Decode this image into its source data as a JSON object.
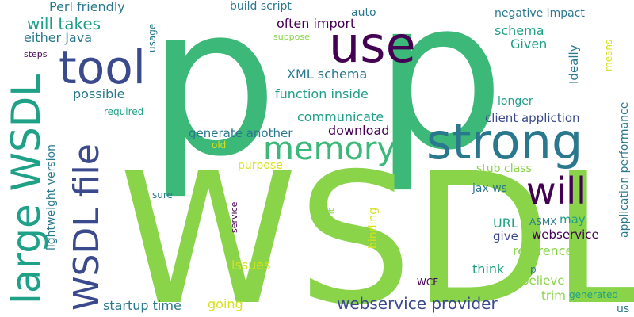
{
  "words": [
    {
      "text": "p",
      "color": "#3cb878"
    },
    {
      "text": "p",
      "color": "#3cb878"
    },
    {
      "text": "WSDL",
      "color": "#8ad44a"
    },
    {
      "text": "strong",
      "color": "#2a788e"
    },
    {
      "text": "use",
      "color": "#440154"
    },
    {
      "text": "tool",
      "color": "#3b4a8c"
    },
    {
      "text": "memory",
      "color": "#3cb878"
    },
    {
      "text": "will",
      "color": "#440154"
    },
    {
      "text": "large WSDL",
      "color": "#1fa187"
    },
    {
      "text": "WSDL file",
      "color": "#3b4a8c"
    },
    {
      "text": "will takes",
      "color": "#1f9e89"
    },
    {
      "text": "either Java",
      "color": "#2a788e"
    },
    {
      "text": "Perl friendly",
      "color": "#2a788e"
    },
    {
      "text": "build script",
      "color": "#2a788e"
    },
    {
      "text": "auto",
      "color": "#2a788e"
    },
    {
      "text": "often import",
      "color": "#440154"
    },
    {
      "text": "negative impact",
      "color": "#2a788e"
    },
    {
      "text": "schema",
      "color": "#1fa187"
    },
    {
      "text": "Given",
      "color": "#1fa187"
    },
    {
      "text": "suppose",
      "color": "#8ad44a"
    },
    {
      "text": "XML schema",
      "color": "#2a788e"
    },
    {
      "text": "usage",
      "color": "#2a788e"
    },
    {
      "text": "steps",
      "color": "#440154"
    },
    {
      "text": "Ideally",
      "color": "#2a788e"
    },
    {
      "text": "means",
      "color": "#d7e219"
    },
    {
      "text": "application performance",
      "color": "#2a788e"
    },
    {
      "text": "possible",
      "color": "#2a788e"
    },
    {
      "text": "function inside",
      "color": "#1f9e89"
    },
    {
      "text": "required",
      "color": "#1fa187"
    },
    {
      "text": "longer",
      "color": "#1f9e89"
    },
    {
      "text": "communicate",
      "color": "#1f9e89"
    },
    {
      "text": "client appliction",
      "color": "#3b4a8c"
    },
    {
      "text": "generate another",
      "color": "#2a788e"
    },
    {
      "text": "download",
      "color": "#440154"
    },
    {
      "text": "old",
      "color": "#d7e219"
    },
    {
      "text": "lightweight version",
      "color": "#2a788e"
    },
    {
      "text": "purpose",
      "color": "#d7e219"
    },
    {
      "text": "stub class",
      "color": "#8ad44a"
    },
    {
      "text": "jax ws",
      "color": "#2a788e"
    },
    {
      "text": "sure",
      "color": "#2a788e"
    },
    {
      "text": "service",
      "color": "#440154"
    },
    {
      "text": "want",
      "color": "#8ad44a"
    },
    {
      "text": "binding",
      "color": "#d7e219"
    },
    {
      "text": "URL",
      "color": "#1fa187"
    },
    {
      "text": "ASMX",
      "color": "#2a788e"
    },
    {
      "text": "may",
      "color": "#1f9e89"
    },
    {
      "text": "give",
      "color": "#3b4a8c"
    },
    {
      "text": "webservice",
      "color": "#440154"
    },
    {
      "text": "referenced",
      "color": "#8ad44a"
    },
    {
      "text": "issues",
      "color": "#d7e219"
    },
    {
      "text": "think",
      "color": "#1fa187"
    },
    {
      "text": "p",
      "color": "#2a788e"
    },
    {
      "text": "believe",
      "color": "#8ad44a"
    },
    {
      "text": "WCF",
      "color": "#440154"
    },
    {
      "text": "trim",
      "color": "#8ad44a"
    },
    {
      "text": "generated",
      "color": "#1fa187"
    },
    {
      "text": "startup time",
      "color": "#2a788e"
    },
    {
      "text": "going",
      "color": "#d7e219"
    },
    {
      "text": "webservice provider",
      "color": "#3b4a8c"
    },
    {
      "text": "us",
      "color": "#2a788e"
    }
  ]
}
